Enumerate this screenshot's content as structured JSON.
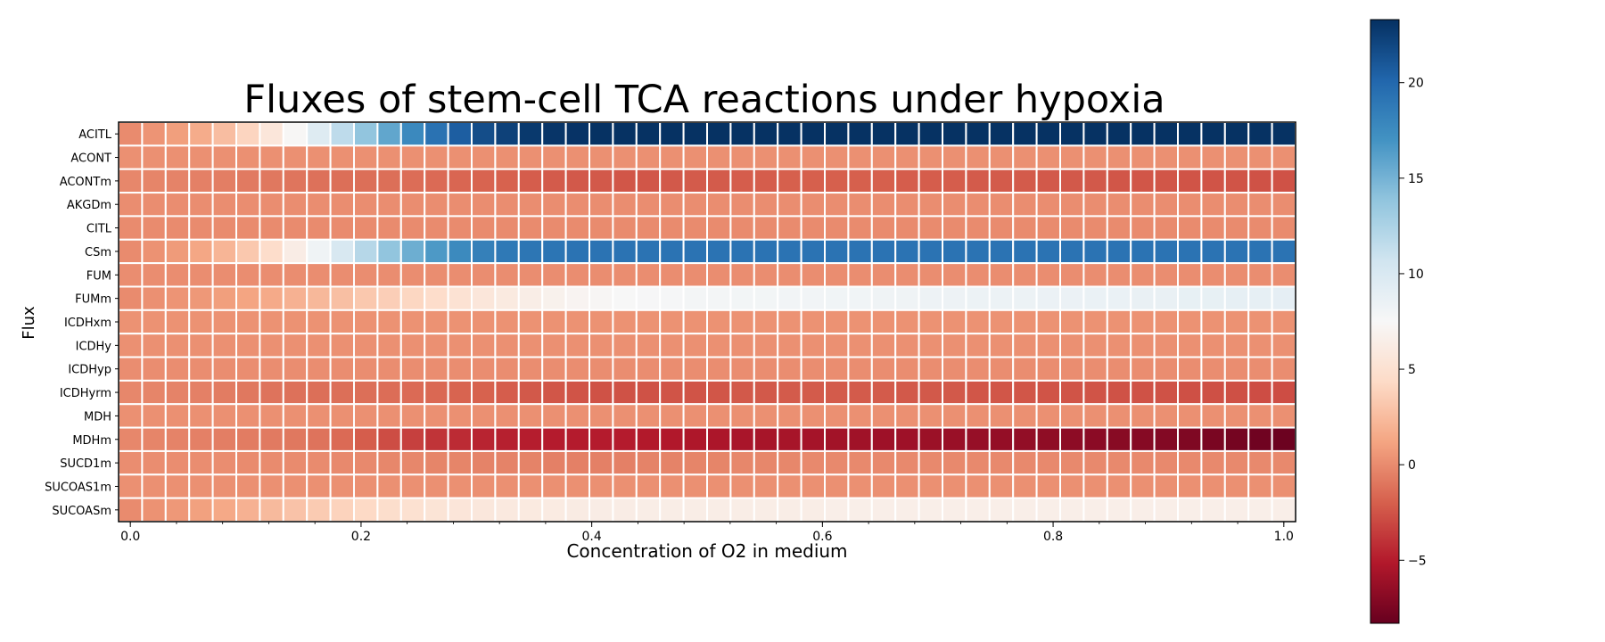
{
  "chart_data": {
    "type": "heatmap",
    "title": "Fluxes of stem-cell TCA reactions under hypoxia",
    "xlabel": "Concentration of O2 in medium",
    "ylabel": "Flux",
    "x_range": [
      0.0,
      1.0
    ],
    "x_ticks": [
      "0.0",
      "0.2",
      "0.4",
      "0.6",
      "0.8",
      "1.0"
    ],
    "rows": [
      "ACITL",
      "ACONT",
      "ACONTm",
      "AKGDm",
      "CITL",
      "CSm",
      "FUM",
      "FUMm",
      "ICDHxm",
      "ICDHy",
      "ICDHyp",
      "ICDHyrm",
      "MDH",
      "MDHm",
      "SUCD1m",
      "SUCOAS1m",
      "SUCOASm"
    ],
    "n_columns": 50,
    "colormap": "RdBu",
    "color_range": [
      -8.3,
      23.3
    ],
    "colorbar_ticks": [
      "20",
      "15",
      "10",
      "5",
      "0",
      "−5"
    ],
    "grid": true,
    "series": [
      {
        "name": "ACITL",
        "values": [
          0.0,
          0.4,
          0.9,
          1.6,
          2.6,
          4.0,
          5.6,
          7.4,
          9.6,
          11.6,
          13.8,
          15.8,
          17.7,
          19.3,
          20.6,
          21.6,
          22.3,
          22.8,
          23.0,
          23.1,
          23.2,
          23.2,
          23.2,
          23.2,
          23.2,
          23.2,
          23.2,
          23.2,
          23.2,
          23.2,
          23.2,
          23.2,
          23.2,
          23.2,
          23.2,
          23.2,
          23.2,
          23.2,
          23.2,
          23.2,
          23.2,
          23.2,
          23.2,
          23.2,
          23.2,
          23.2,
          23.2,
          23.2,
          23.2,
          23.2
        ]
      },
      {
        "name": "ACONT",
        "values": [
          0.2,
          0.2,
          0.2,
          0.2,
          0.2,
          0.2,
          0.2,
          0.2,
          0.2,
          0.2,
          0.2,
          0.2,
          0.2,
          0.2,
          0.2,
          0.2,
          0.2,
          0.2,
          0.2,
          0.2,
          0.2,
          0.2,
          0.2,
          0.2,
          0.2,
          0.2,
          0.2,
          0.2,
          0.2,
          0.2,
          0.2,
          0.2,
          0.2,
          0.2,
          0.2,
          0.2,
          0.2,
          0.2,
          0.2,
          0.2,
          0.2,
          0.2,
          0.2,
          0.2,
          0.2,
          0.2,
          0.2,
          0.2,
          0.2,
          0.2
        ]
      },
      {
        "name": "ACONTm",
        "values": [
          -0.2,
          -0.3,
          -0.4,
          -0.5,
          -0.6,
          -0.8,
          -0.9,
          -1.0,
          -1.2,
          -1.3,
          -1.3,
          -1.3,
          -1.4,
          -1.5,
          -1.7,
          -1.8,
          -1.9,
          -2.1,
          -2.2,
          -2.3,
          -2.3,
          -2.4,
          -2.4,
          -2.3,
          -2.2,
          -2.2,
          -2.1,
          -2.1,
          -2.0,
          -2.0,
          -2.0,
          -2.0,
          -2.0,
          -2.1,
          -2.1,
          -2.1,
          -2.2,
          -2.2,
          -2.2,
          -2.3,
          -2.3,
          -2.3,
          -2.4,
          -2.4,
          -2.4,
          -2.5,
          -2.5,
          -2.5,
          -2.6,
          -2.6
        ]
      },
      {
        "name": "AKGDm",
        "values": [
          0.1,
          0.1,
          0.1,
          0.1,
          0.1,
          0.1,
          0.1,
          0.1,
          0.1,
          0.1,
          0.1,
          0.1,
          0.1,
          0.1,
          0.1,
          0.1,
          0.1,
          0.1,
          0.1,
          0.1,
          0.1,
          0.1,
          0.1,
          0.1,
          0.1,
          0.1,
          0.1,
          0.1,
          0.1,
          0.1,
          0.1,
          0.1,
          0.1,
          0.1,
          0.1,
          0.1,
          0.1,
          0.1,
          0.1,
          0.1,
          0.1,
          0.1,
          0.1,
          0.1,
          0.1,
          0.1,
          0.1,
          0.1,
          0.1,
          0.1
        ]
      },
      {
        "name": "CITL",
        "values": [
          0.0,
          0.0,
          0.0,
          0.0,
          0.0,
          0.0,
          0.0,
          0.0,
          0.0,
          0.0,
          0.0,
          0.0,
          0.0,
          0.0,
          0.0,
          0.0,
          0.0,
          0.0,
          0.0,
          0.0,
          0.0,
          0.0,
          0.0,
          0.0,
          0.0,
          0.0,
          0.0,
          0.0,
          0.0,
          0.0,
          0.0,
          0.0,
          0.0,
          0.0,
          0.0,
          0.0,
          0.0,
          0.0,
          0.0,
          0.0,
          0.0,
          0.0,
          0.0,
          0.0,
          0.0,
          0.0,
          0.0,
          0.0,
          0.0,
          0.0
        ]
      },
      {
        "name": "CSm",
        "values": [
          0.0,
          0.3,
          0.7,
          1.3,
          2.1,
          3.2,
          4.6,
          6.3,
          8.2,
          10.1,
          12.0,
          13.8,
          15.3,
          16.6,
          17.6,
          18.3,
          18.8,
          19.0,
          19.1,
          19.2,
          19.2,
          19.2,
          19.2,
          19.2,
          19.2,
          19.2,
          19.2,
          19.2,
          19.2,
          19.2,
          19.2,
          19.2,
          19.2,
          19.2,
          19.2,
          19.2,
          19.2,
          19.2,
          19.2,
          19.2,
          19.2,
          19.2,
          19.2,
          19.2,
          19.2,
          19.2,
          19.2,
          19.2,
          19.2,
          19.2
        ]
      },
      {
        "name": "FUM",
        "values": [
          0.1,
          0.1,
          0.1,
          0.1,
          0.1,
          0.1,
          0.1,
          0.1,
          0.1,
          0.1,
          0.1,
          0.1,
          0.1,
          0.1,
          0.1,
          0.1,
          0.1,
          0.1,
          0.1,
          0.1,
          0.1,
          0.1,
          0.1,
          0.1,
          0.1,
          0.1,
          0.1,
          0.1,
          0.1,
          0.1,
          0.1,
          0.1,
          0.1,
          0.1,
          0.1,
          0.1,
          0.1,
          0.1,
          0.1,
          0.1,
          0.1,
          0.1,
          0.1,
          0.1,
          0.1,
          0.1,
          0.1,
          0.1,
          0.1,
          0.1
        ]
      },
      {
        "name": "FUMm",
        "values": [
          0.0,
          0.2,
          0.4,
          0.6,
          0.9,
          1.2,
          1.5,
          1.9,
          2.3,
          2.7,
          3.2,
          3.6,
          4.1,
          4.6,
          5.1,
          5.6,
          6.0,
          6.4,
          6.8,
          7.1,
          7.3,
          7.5,
          7.6,
          7.7,
          7.8,
          7.8,
          7.9,
          7.9,
          8.0,
          8.0,
          8.1,
          8.1,
          8.2,
          8.2,
          8.3,
          8.3,
          8.4,
          8.4,
          8.4,
          8.5,
          8.5,
          8.6,
          8.6,
          8.7,
          8.7,
          8.8,
          8.8,
          8.9,
          8.9,
          9.0
        ]
      },
      {
        "name": "ICDHxm",
        "values": [
          0.3,
          0.3,
          0.3,
          0.3,
          0.3,
          0.3,
          0.3,
          0.3,
          0.3,
          0.3,
          0.3,
          0.3,
          0.3,
          0.3,
          0.3,
          0.3,
          0.3,
          0.3,
          0.3,
          0.3,
          0.3,
          0.3,
          0.3,
          0.3,
          0.3,
          0.3,
          0.3,
          0.3,
          0.3,
          0.3,
          0.3,
          0.3,
          0.3,
          0.3,
          0.3,
          0.3,
          0.3,
          0.3,
          0.3,
          0.3,
          0.3,
          0.3,
          0.3,
          0.3,
          0.3,
          0.3,
          0.3,
          0.3,
          0.3,
          0.3
        ]
      },
      {
        "name": "ICDHy",
        "values": [
          0.2,
          0.2,
          0.2,
          0.2,
          0.2,
          0.2,
          0.2,
          0.2,
          0.2,
          0.2,
          0.2,
          0.2,
          0.2,
          0.2,
          0.2,
          0.2,
          0.2,
          0.2,
          0.2,
          0.2,
          0.2,
          0.2,
          0.2,
          0.2,
          0.2,
          0.2,
          0.2,
          0.2,
          0.2,
          0.2,
          0.2,
          0.2,
          0.2,
          0.2,
          0.2,
          0.2,
          0.2,
          0.2,
          0.2,
          0.2,
          0.2,
          0.2,
          0.2,
          0.2,
          0.2,
          0.2,
          0.2,
          0.2,
          0.2,
          0.2
        ]
      },
      {
        "name": "ICDHyp",
        "values": [
          0.1,
          0.1,
          0.1,
          0.1,
          0.1,
          0.1,
          0.1,
          0.1,
          0.1,
          0.1,
          0.1,
          0.1,
          0.1,
          0.1,
          0.1,
          0.1,
          0.1,
          0.1,
          0.1,
          0.1,
          0.1,
          0.1,
          0.1,
          0.1,
          0.1,
          0.1,
          0.1,
          0.1,
          0.1,
          0.1,
          0.1,
          0.1,
          0.1,
          0.1,
          0.1,
          0.1,
          0.1,
          0.1,
          0.1,
          0.1,
          0.1,
          0.1,
          0.1,
          0.1,
          0.1,
          0.1,
          0.1,
          0.1,
          0.1,
          0.1
        ]
      },
      {
        "name": "ICDHyrm",
        "values": [
          -0.2,
          -0.3,
          -0.4,
          -0.5,
          -0.7,
          -0.9,
          -1.1,
          -1.2,
          -1.3,
          -1.3,
          -1.3,
          -1.4,
          -1.5,
          -1.6,
          -1.8,
          -1.9,
          -2.1,
          -2.3,
          -2.4,
          -2.5,
          -2.6,
          -2.6,
          -2.6,
          -2.5,
          -2.5,
          -2.4,
          -2.3,
          -2.3,
          -2.2,
          -2.2,
          -2.2,
          -2.2,
          -2.2,
          -2.3,
          -2.3,
          -2.3,
          -2.4,
          -2.4,
          -2.4,
          -2.5,
          -2.5,
          -2.5,
          -2.6,
          -2.6,
          -2.6,
          -2.7,
          -2.7,
          -2.7,
          -2.8,
          -2.8
        ]
      },
      {
        "name": "MDH",
        "values": [
          0.2,
          0.2,
          0.2,
          0.2,
          0.2,
          0.2,
          0.2,
          0.2,
          0.2,
          0.2,
          0.2,
          0.2,
          0.2,
          0.2,
          0.2,
          0.2,
          0.2,
          0.2,
          0.2,
          0.2,
          0.2,
          0.2,
          0.2,
          0.2,
          0.2,
          0.2,
          0.2,
          0.2,
          0.2,
          0.2,
          0.2,
          0.2,
          0.2,
          0.2,
          0.2,
          0.2,
          0.2,
          0.2,
          0.2,
          0.2,
          0.2,
          0.2,
          0.2,
          0.2,
          0.2,
          0.2,
          0.2,
          0.2,
          0.2,
          0.2
        ]
      },
      {
        "name": "MDHm",
        "values": [
          -0.2,
          -0.3,
          -0.4,
          -0.5,
          -0.6,
          -0.7,
          -0.8,
          -0.9,
          -1.1,
          -1.5,
          -2.1,
          -2.8,
          -3.4,
          -3.9,
          -4.3,
          -4.6,
          -4.8,
          -4.9,
          -5.0,
          -5.0,
          -5.0,
          -5.0,
          -5.1,
          -5.2,
          -5.3,
          -5.4,
          -5.5,
          -5.6,
          -5.6,
          -5.7,
          -5.8,
          -5.9,
          -6.0,
          -6.0,
          -6.1,
          -6.2,
          -6.3,
          -6.4,
          -6.5,
          -6.6,
          -6.7,
          -6.8,
          -6.9,
          -7.0,
          -7.1,
          -7.3,
          -7.5,
          -7.7,
          -7.9,
          -8.1
        ]
      },
      {
        "name": "SUCD1m",
        "values": [
          0.1,
          0.1,
          0.1,
          0.1,
          0.1,
          0.0,
          0.0,
          0.0,
          0.0,
          -0.1,
          -0.1,
          -0.2,
          -0.2,
          -0.3,
          -0.3,
          -0.4,
          -0.4,
          -0.4,
          -0.5,
          -0.5,
          -0.5,
          -0.5,
          -0.4,
          -0.4,
          -0.3,
          -0.3,
          -0.2,
          -0.2,
          -0.2,
          -0.1,
          -0.1,
          -0.1,
          -0.1,
          -0.1,
          -0.1,
          -0.1,
          -0.1,
          -0.1,
          -0.1,
          -0.1,
          -0.1,
          -0.1,
          -0.1,
          -0.1,
          -0.1,
          -0.1,
          -0.1,
          -0.1,
          -0.1,
          -0.1
        ]
      },
      {
        "name": "SUCOAS1m",
        "values": [
          0.2,
          0.2,
          0.2,
          0.2,
          0.2,
          0.2,
          0.2,
          0.2,
          0.2,
          0.2,
          0.2,
          0.2,
          0.2,
          0.2,
          0.2,
          0.2,
          0.2,
          0.2,
          0.2,
          0.2,
          0.2,
          0.2,
          0.2,
          0.2,
          0.2,
          0.2,
          0.2,
          0.2,
          0.2,
          0.2,
          0.2,
          0.2,
          0.2,
          0.2,
          0.2,
          0.2,
          0.2,
          0.2,
          0.2,
          0.2,
          0.2,
          0.2,
          0.2,
          0.2,
          0.2,
          0.2,
          0.2,
          0.2,
          0.2,
          0.2
        ]
      },
      {
        "name": "SUCOASm",
        "values": [
          0.0,
          0.3,
          0.6,
          1.0,
          1.4,
          1.9,
          2.4,
          2.9,
          3.4,
          3.9,
          4.3,
          4.7,
          5.0,
          5.3,
          5.5,
          5.7,
          5.9,
          6.0,
          6.1,
          6.2,
          6.3,
          6.3,
          6.4,
          6.4,
          6.4,
          6.4,
          6.4,
          6.4,
          6.4,
          6.4,
          6.5,
          6.5,
          6.5,
          6.5,
          6.5,
          6.5,
          6.5,
          6.5,
          6.5,
          6.5,
          6.5,
          6.5,
          6.5,
          6.5,
          6.5,
          6.5,
          6.5,
          6.5,
          6.5,
          6.5
        ]
      }
    ]
  }
}
